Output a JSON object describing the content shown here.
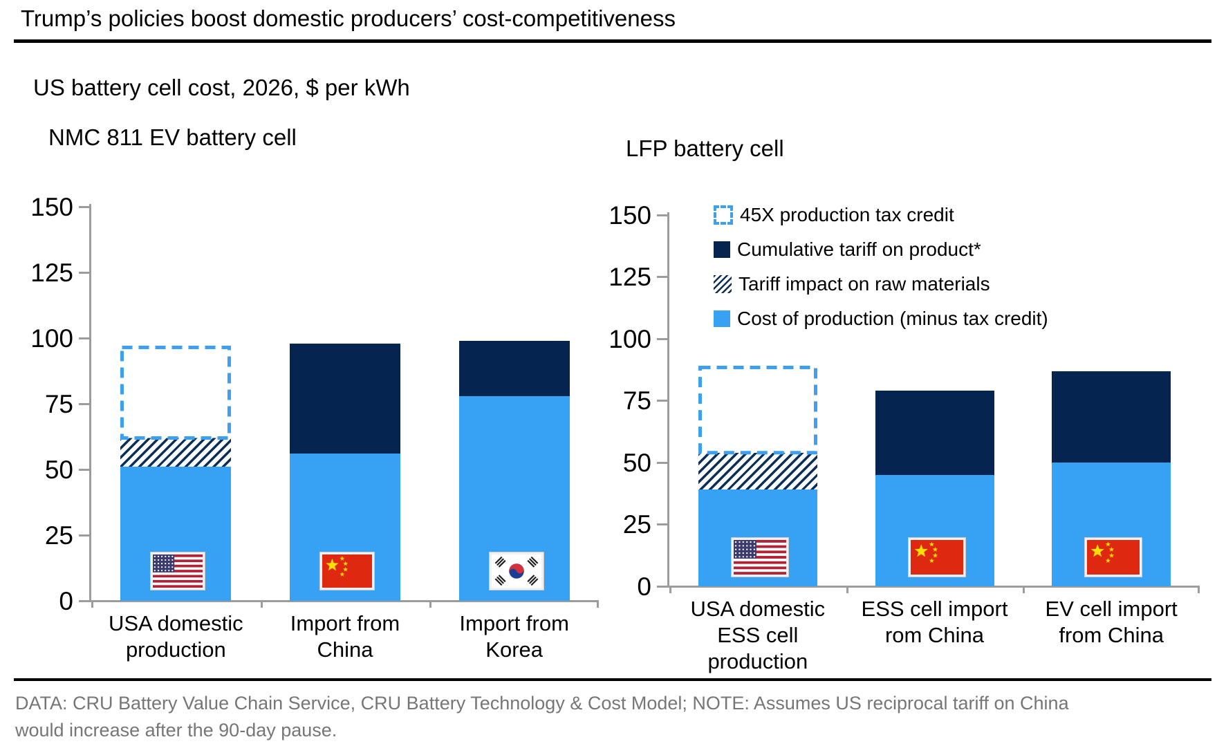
{
  "header": {
    "title": "Trump’s policies boost domestic producers’ cost-competitiveness",
    "subtitle": "US battery cell cost, 2026, $ per kWh"
  },
  "legend": {
    "items": [
      {
        "label": "45X production tax credit",
        "swatch": "dashed-outline-blue"
      },
      {
        "label": "Cumulative tariff on product*",
        "swatch": "solid-navy"
      },
      {
        "label": "Tariff impact on raw materials",
        "swatch": "hatched-navy"
      },
      {
        "label": "Cost of production (minus tax credit)",
        "swatch": "solid-blue"
      }
    ]
  },
  "footer": {
    "note": "DATA: CRU Battery Value Chain Service, CRU Battery Technology & Cost Model; NOTE: Assumes US reciprocal tariff on China would increase after the 90-day pause."
  },
  "colors": {
    "cost_blue": "#37A1F4",
    "tariff_navy": "#052450",
    "hatch_stripe_navy": "#0C2E59",
    "credit_dashed_blue": "#3D9FF0",
    "axis_gray": "#9C9C9C",
    "footer_text_gray": "#767676"
  },
  "chart_data": [
    {
      "type": "bar",
      "stacked": true,
      "title": "NMC 811 EV battery cell",
      "ylabel": "$ per kWh",
      "ylim": [
        0,
        150
      ],
      "yticks": [
        0,
        25,
        50,
        75,
        100,
        125,
        150
      ],
      "categories": [
        "USA domestic production",
        "Import from China",
        "Import from Korea"
      ],
      "bars": [
        {
          "label": "USA domestic production",
          "label_lines": [
            "USA domestic",
            "production"
          ],
          "flag": "usa",
          "cost_of_production": 51,
          "tariff_impact_raw_materials": 11,
          "cumulative_tariff_on_product": 0,
          "tax_credit_45x_outline": 35
        },
        {
          "label": "Import from China",
          "label_lines": [
            "Import from",
            "China"
          ],
          "flag": "china",
          "cost_of_production": 56,
          "tariff_impact_raw_materials": 0,
          "cumulative_tariff_on_product": 42,
          "tax_credit_45x_outline": 0
        },
        {
          "label": "Import from Korea",
          "label_lines": [
            "Import from",
            "Korea"
          ],
          "flag": "korea",
          "cost_of_production": 78,
          "tariff_impact_raw_materials": 0,
          "cumulative_tariff_on_product": 21,
          "tax_credit_45x_outline": 0
        }
      ]
    },
    {
      "type": "bar",
      "stacked": true,
      "title": "LFP battery cell",
      "ylabel": "$ per kWh",
      "ylim": [
        0,
        150
      ],
      "yticks": [
        0,
        25,
        50,
        75,
        100,
        125,
        150
      ],
      "categories": [
        "USA domestic ESS cell production",
        "ESS cell import rom China",
        "EV cell import from China"
      ],
      "bars": [
        {
          "label": "USA domestic ESS cell production",
          "label_lines": [
            "USA domestic",
            "ESS cell",
            "production"
          ],
          "flag": "usa",
          "cost_of_production": 39,
          "tariff_impact_raw_materials": 15,
          "cumulative_tariff_on_product": 0,
          "tax_credit_45x_outline": 35
        },
        {
          "label": "ESS cell import rom China",
          "label_lines": [
            "ESS cell import",
            "rom China"
          ],
          "flag": "china",
          "cost_of_production": 45,
          "tariff_impact_raw_materials": 0,
          "cumulative_tariff_on_product": 34,
          "tax_credit_45x_outline": 0
        },
        {
          "label": "EV cell import from China",
          "label_lines": [
            "EV cell import",
            "from China"
          ],
          "flag": "china",
          "cost_of_production": 50,
          "tariff_impact_raw_materials": 0,
          "cumulative_tariff_on_product": 37,
          "tax_credit_45x_outline": 0
        }
      ]
    }
  ]
}
